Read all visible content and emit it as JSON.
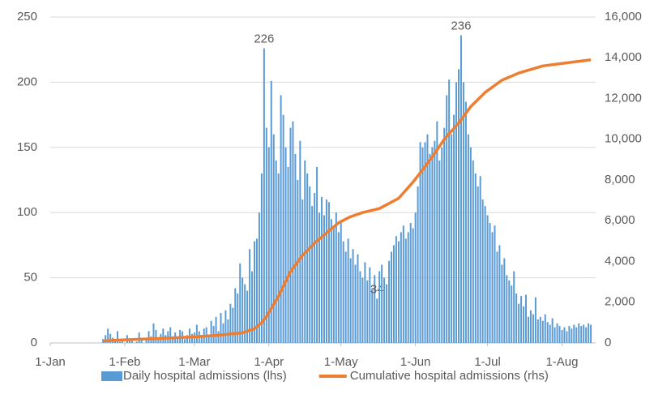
{
  "chart_data": {
    "type": "combo",
    "xlim": [
      0,
      227
    ],
    "xticks": [
      {
        "value": 0,
        "label": "1-Jan"
      },
      {
        "value": 31,
        "label": "1-Feb"
      },
      {
        "value": 60,
        "label": "1-Mar"
      },
      {
        "value": 91,
        "label": "1-Apr"
      },
      {
        "value": 121,
        "label": "1-May"
      },
      {
        "value": 152,
        "label": "1-Jun"
      },
      {
        "value": 182,
        "label": "1-Jul"
      },
      {
        "value": 213,
        "label": "1-Aug"
      }
    ],
    "ylim": [
      0,
      250
    ],
    "yticks": [
      0,
      50,
      100,
      150,
      200,
      250
    ],
    "y2lim": [
      0,
      16000
    ],
    "y2ticks": [
      0,
      {
        "value": 2000,
        "label": "2,000"
      },
      {
        "value": 4000,
        "label": "4,000"
      },
      {
        "value": 6000,
        "label": "6,000"
      },
      {
        "value": 8000,
        "label": "8,000"
      },
      {
        "value": 10000,
        "label": "10,000"
      },
      {
        "value": 12000,
        "label": "12,000"
      },
      {
        "value": 14000,
        "label": "14,000"
      },
      {
        "value": 16000,
        "label": "16,000"
      }
    ],
    "grid": true,
    "legend": "bottom",
    "x": [
      22,
      23,
      24,
      25,
      26,
      27,
      28,
      29,
      30,
      31,
      32,
      33,
      34,
      35,
      36,
      37,
      38,
      39,
      40,
      41,
      42,
      43,
      44,
      45,
      46,
      47,
      48,
      49,
      50,
      51,
      52,
      53,
      54,
      55,
      56,
      57,
      58,
      59,
      60,
      61,
      62,
      63,
      64,
      65,
      66,
      67,
      68,
      69,
      70,
      71,
      72,
      73,
      74,
      75,
      76,
      77,
      78,
      79,
      80,
      81,
      82,
      83,
      84,
      85,
      86,
      87,
      88,
      89,
      90,
      91,
      92,
      93,
      94,
      95,
      96,
      97,
      98,
      99,
      100,
      101,
      102,
      103,
      104,
      105,
      106,
      107,
      108,
      109,
      110,
      111,
      112,
      113,
      114,
      115,
      116,
      117,
      118,
      119,
      120,
      121,
      122,
      123,
      124,
      125,
      126,
      127,
      128,
      129,
      130,
      131,
      132,
      133,
      134,
      135,
      136,
      137,
      138,
      139,
      140,
      141,
      142,
      143,
      144,
      145,
      146,
      147,
      148,
      149,
      150,
      151,
      152,
      153,
      154,
      155,
      156,
      157,
      158,
      159,
      160,
      161,
      162,
      163,
      164,
      165,
      166,
      167,
      168,
      169,
      170,
      171,
      172,
      173,
      174,
      175,
      176,
      177,
      178,
      179,
      180,
      181,
      182,
      183,
      184,
      185,
      186,
      187,
      188,
      189,
      190,
      191,
      192,
      193,
      194,
      195,
      196,
      197,
      198,
      199,
      200,
      201,
      202,
      203,
      204,
      205,
      206,
      207,
      208,
      209,
      210,
      211,
      212,
      213,
      214,
      215,
      216,
      217,
      218,
      219,
      220,
      221,
      222,
      223,
      224,
      225
    ],
    "series": [
      {
        "name": "Daily hospital admissions (lhs)",
        "type": "bar",
        "color": "#5b9bd5",
        "values": [
          3,
          6,
          11,
          7,
          4,
          2,
          9,
          1,
          2,
          0,
          6,
          3,
          2,
          0,
          1,
          8,
          2,
          0,
          4,
          9,
          5,
          15,
          10,
          3,
          7,
          11,
          6,
          9,
          12,
          5,
          8,
          4,
          10,
          9,
          3,
          6,
          11,
          7,
          8,
          14,
          9,
          6,
          11,
          12,
          5,
          17,
          13,
          20,
          9,
          23,
          15,
          25,
          18,
          30,
          27,
          42,
          38,
          61,
          50,
          45,
          40,
          72,
          55,
          78,
          80,
          100,
          130,
          226,
          165,
          150,
          201,
          160,
          140,
          130,
          190,
          175,
          150,
          135,
          165,
          170,
          145,
          125,
          155,
          110,
          140,
          130,
          120,
          105,
          115,
          135,
          100,
          112,
          98,
          110,
          108,
          95,
          88,
          100,
          85,
          92,
          78,
          70,
          80,
          65,
          72,
          60,
          68,
          55,
          50,
          62,
          48,
          58,
          42,
          52,
          34,
          55,
          60,
          50,
          45,
          63,
          70,
          75,
          82,
          78,
          85,
          90,
          80,
          85,
          92,
          88,
          100,
          120,
          154,
          150,
          154,
          160,
          145,
          150,
          155,
          170,
          140,
          150,
          165,
          190,
          202,
          160,
          175,
          200,
          210,
          236,
          200,
          185,
          160,
          150,
          140,
          130,
          120,
          128,
          110,
          105,
          98,
          92,
          85,
          90,
          70,
          75,
          60,
          65,
          52,
          48,
          44,
          55,
          38,
          30,
          36,
          28,
          37,
          20,
          25,
          22,
          35,
          18,
          20,
          17,
          22,
          16,
          14,
          19,
          12,
          15,
          13,
          10,
          12,
          9,
          13,
          11,
          14,
          12,
          15,
          13,
          14,
          12,
          15,
          14
        ],
        "value_labels": [
          null,
          null,
          null,
          null,
          null,
          null,
          null,
          null,
          null,
          null,
          null,
          null,
          null,
          null,
          null,
          null,
          null,
          null,
          null,
          null,
          null,
          null,
          null,
          null,
          null,
          null,
          null,
          null,
          null,
          null,
          null,
          null,
          null,
          null,
          null,
          null,
          null,
          null,
          null,
          null,
          null,
          null,
          null,
          null,
          null,
          null,
          null,
          null,
          null,
          null,
          null,
          null,
          null,
          null,
          null,
          null,
          null,
          null,
          null,
          null,
          null,
          null,
          null,
          null,
          null,
          null,
          null,
          "226",
          null,
          null,
          null,
          null,
          null,
          null,
          null,
          null,
          null,
          null,
          null,
          null,
          null,
          null,
          null,
          null,
          null,
          null,
          null,
          null,
          null,
          null,
          null,
          null,
          null,
          null,
          null,
          null,
          null,
          null,
          null,
          null,
          null,
          null,
          null,
          null,
          null,
          null,
          null,
          null,
          null,
          null,
          null,
          null,
          null,
          null,
          "34",
          null,
          null,
          null,
          null,
          null,
          null,
          null,
          null,
          null,
          null,
          null,
          null,
          null,
          null,
          null,
          null,
          null,
          null,
          null,
          null,
          null,
          null,
          null,
          null,
          null,
          null,
          null,
          null,
          null,
          null,
          null,
          null,
          null,
          null,
          "236",
          null,
          null,
          null,
          null,
          null,
          null,
          null,
          null,
          null,
          null,
          null,
          null,
          null,
          null,
          null,
          null,
          null,
          null,
          null,
          null,
          null,
          null,
          null,
          null,
          null,
          null,
          null,
          null,
          null,
          null,
          null,
          null,
          null,
          null,
          null,
          null,
          null,
          null,
          null,
          null,
          null,
          null,
          null,
          null,
          null,
          null,
          null,
          null,
          null,
          null,
          null,
          null,
          null,
          null
        ]
      },
      {
        "name": "Cumulative hospital admissions (rhs)",
        "type": "line",
        "axis": "y2",
        "color": "#ed7d31",
        "x": [
          22,
          30,
          45,
          60,
          70,
          80,
          85,
          88,
          90,
          95,
          100,
          105,
          110,
          114,
          120,
          125,
          130,
          137,
          145,
          151,
          155,
          160,
          164,
          170,
          175,
          181,
          188,
          195,
          205,
          215,
          225
        ],
        "values": [
          100,
          150,
          220,
          300,
          380,
          500,
          700,
          1000,
          1300,
          2300,
          3500,
          4300,
          4900,
          5300,
          5900,
          6200,
          6400,
          6600,
          7100,
          7900,
          8500,
          9300,
          10000,
          10800,
          11600,
          12300,
          12900,
          13250,
          13600,
          13750,
          13900
        ]
      }
    ]
  }
}
